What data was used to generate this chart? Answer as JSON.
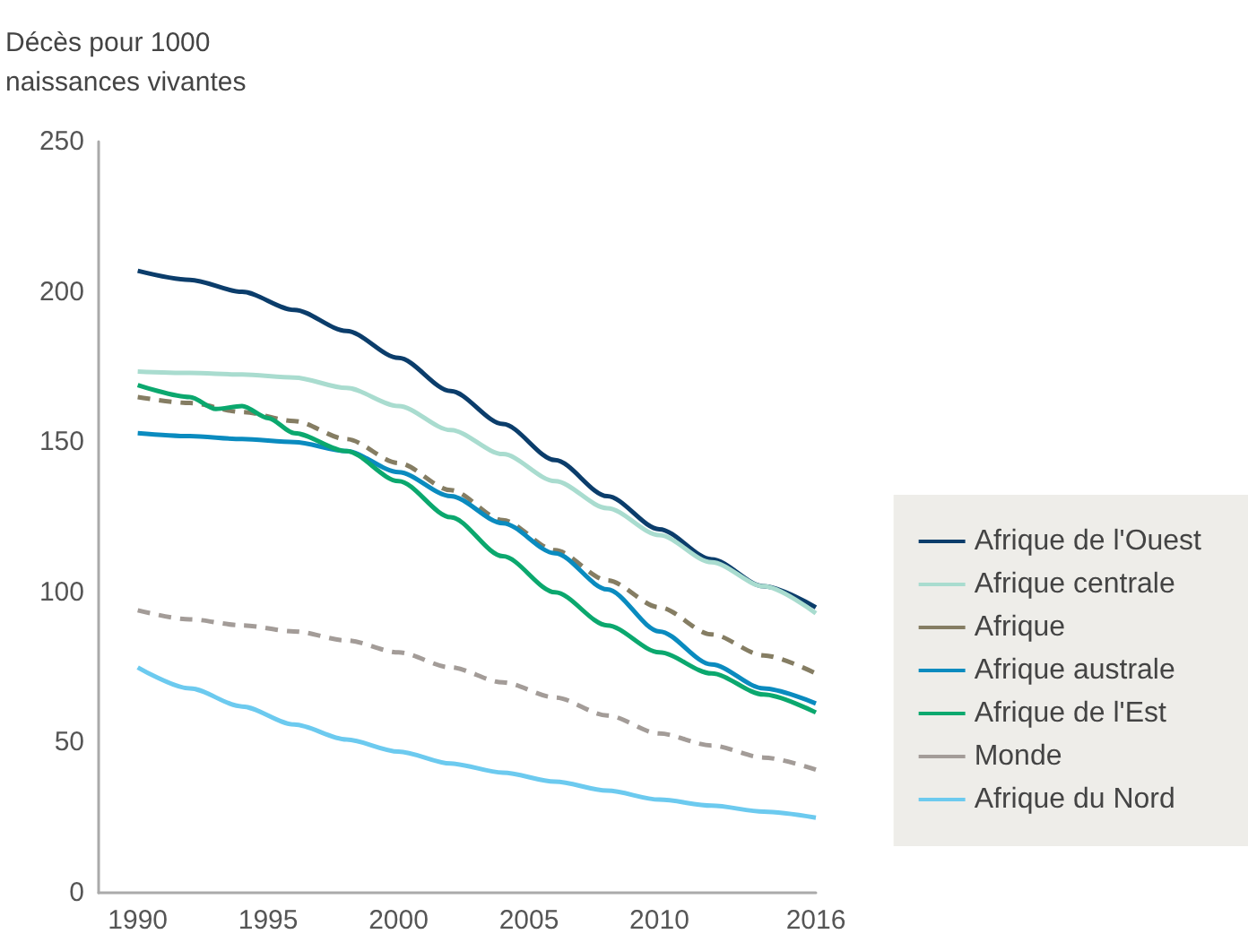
{
  "chart_data": {
    "type": "line",
    "ylabel": "Décès pour 1000\nnaissances vivantes",
    "xlim": [
      1988.5,
      2016
    ],
    "xticks": [
      1990,
      1995,
      2000,
      2005,
      2010,
      2016
    ],
    "ylim": [
      0,
      250
    ],
    "yticks": [
      0,
      50,
      100,
      150,
      200,
      250
    ],
    "grid": false,
    "legend": "right",
    "marker": "none",
    "series": [
      {
        "name": "Afrique de l'Ouest",
        "color": "#0b3d6b",
        "line_style": "solid",
        "x": [
          1990,
          1992,
          1994,
          1996,
          1998,
          2000,
          2002,
          2004,
          2006,
          2008,
          2010,
          2012,
          2014,
          2016
        ],
        "values": [
          207,
          204,
          200,
          194,
          187,
          178,
          167,
          156,
          144,
          132,
          121,
          111,
          102,
          95
        ]
      },
      {
        "name": "Afrique centrale",
        "color": "#a9dccf",
        "line_style": "solid",
        "x": [
          1990,
          1992,
          1994,
          1996,
          1998,
          2000,
          2002,
          2004,
          2006,
          2008,
          2010,
          2012,
          2014,
          2016
        ],
        "values": [
          173.5,
          173,
          172.5,
          171.5,
          168,
          162,
          154,
          146,
          137,
          128,
          119,
          110,
          102,
          93
        ]
      },
      {
        "name": "Afrique",
        "color": "#857d63",
        "line_style": "dashed",
        "x": [
          1990,
          1992,
          1994,
          1996,
          1998,
          2000,
          2002,
          2004,
          2006,
          2008,
          2010,
          2012,
          2014,
          2016
        ],
        "values": [
          165,
          163,
          160,
          157,
          151,
          143,
          134,
          124,
          114,
          104,
          95,
          86,
          79,
          73
        ]
      },
      {
        "name": "Afrique australe",
        "color": "#0a8bbf",
        "line_style": "solid",
        "x": [
          1990,
          1992,
          1994,
          1996,
          1998,
          2000,
          2002,
          2004,
          2006,
          2008,
          2010,
          2012,
          2014,
          2016
        ],
        "values": [
          153,
          152,
          151,
          150,
          147,
          140,
          132,
          123,
          113,
          101,
          87,
          76,
          68,
          63
        ]
      },
      {
        "name": "Afrique de l'Est",
        "color": "#0ba86e",
        "line_style": "solid",
        "x": [
          1990,
          1992,
          1993,
          1994,
          1995,
          1996,
          1998,
          2000,
          2002,
          2004,
          2006,
          2008,
          2010,
          2012,
          2014,
          2016
        ],
        "values": [
          169,
          165,
          161,
          162,
          158,
          153,
          147,
          137,
          125,
          112,
          100,
          89,
          80,
          73,
          66,
          60
        ]
      },
      {
        "name": "Monde",
        "color": "#a39c98",
        "line_style": "dashed",
        "x": [
          1990,
          1992,
          1994,
          1996,
          1998,
          2000,
          2002,
          2004,
          2006,
          2008,
          2010,
          2012,
          2014,
          2016
        ],
        "values": [
          94,
          91,
          89,
          87,
          84,
          80,
          75,
          70,
          65,
          59,
          53,
          49,
          45,
          41
        ]
      },
      {
        "name": "Afrique du Nord",
        "color": "#6ccaef",
        "line_style": "solid",
        "x": [
          1990,
          1992,
          1994,
          1996,
          1998,
          2000,
          2002,
          2004,
          2006,
          2008,
          2010,
          2012,
          2014,
          2016
        ],
        "values": [
          75,
          68,
          62,
          56,
          51,
          47,
          43,
          40,
          37,
          34,
          31,
          29,
          27,
          25
        ]
      }
    ]
  }
}
